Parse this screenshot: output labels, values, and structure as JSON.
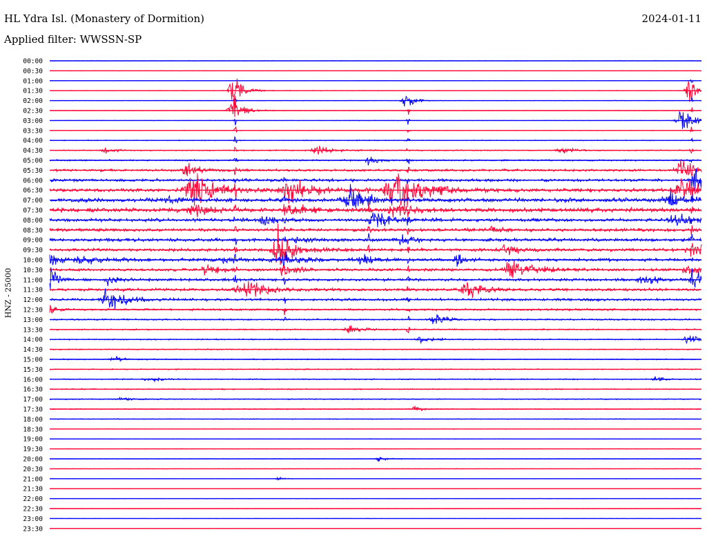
{
  "header": {
    "station": "HL Ydra Isl. (Monastery of Dormition)",
    "date": "2024-01-11",
    "filter": "Applied filter: WWSSN-SP"
  },
  "chart_data": {
    "type": "line",
    "ylabel": "HNZ - 25000",
    "colors": [
      "#0000ff",
      "#ff0033"
    ],
    "rows": [
      "00:00",
      "00:30",
      "01:00",
      "01:30",
      "02:00",
      "02:30",
      "03:00",
      "03:30",
      "04:00",
      "04:30",
      "05:00",
      "05:30",
      "06:00",
      "06:30",
      "07:00",
      "07:30",
      "08:00",
      "08:30",
      "09:00",
      "09:30",
      "10:00",
      "10:30",
      "11:00",
      "11:30",
      "12:00",
      "12:30",
      "13:00",
      "13:30",
      "14:00",
      "14:30",
      "15:00",
      "15:30",
      "16:00",
      "16:30",
      "17:00",
      "17:30",
      "18:00",
      "18:30",
      "19:00",
      "19:30",
      "20:00",
      "20:30",
      "21:00",
      "21:30",
      "22:00",
      "22:30",
      "23:00",
      "23:30"
    ],
    "noise": [
      0.3,
      0.3,
      0.4,
      0.6,
      0.4,
      0.4,
      0.5,
      0.6,
      0.8,
      1.0,
      1.5,
      2.2,
      2.6,
      3.4,
      3.9,
      3.9,
      3.1,
      3.0,
      3.0,
      2.8,
      2.9,
      2.6,
      2.6,
      2.6,
      2.3,
      1.9,
      1.5,
      1.2,
      1.1,
      1.0,
      1.0,
      1.0,
      1.1,
      1.1,
      1.0,
      0.9,
      0.7,
      0.6,
      0.5,
      0.5,
      0.5,
      0.5,
      0.4,
      0.4,
      0.3,
      0.3,
      0.3,
      0.3
    ],
    "events": [
      {
        "row": 3,
        "pos": 0.28,
        "amp": 40,
        "dur": 0.012
      },
      {
        "row": 3,
        "pos": 0.98,
        "amp": 25,
        "dur": 0.01
      },
      {
        "row": 4,
        "pos": 0.545,
        "amp": 20,
        "dur": 0.01
      },
      {
        "row": 5,
        "pos": 0.28,
        "amp": 30,
        "dur": 0.015
      },
      {
        "row": 6,
        "pos": 0.97,
        "amp": 20,
        "dur": 0.02
      },
      {
        "row": 9,
        "pos": 0.085,
        "amp": 8,
        "dur": 0.012
      },
      {
        "row": 9,
        "pos": 0.41,
        "amp": 10,
        "dur": 0.015
      },
      {
        "row": 9,
        "pos": 0.785,
        "amp": 8,
        "dur": 0.015
      },
      {
        "row": 10,
        "pos": 0.49,
        "amp": 12,
        "dur": 0.01
      },
      {
        "row": 11,
        "pos": 0.21,
        "amp": 14,
        "dur": 0.015
      },
      {
        "row": 11,
        "pos": 0.97,
        "amp": 22,
        "dur": 0.02
      },
      {
        "row": 12,
        "pos": 0.99,
        "amp": 20,
        "dur": 0.015
      },
      {
        "row": 13,
        "pos": 0.22,
        "amp": 40,
        "dur": 0.025
      },
      {
        "row": 13,
        "pos": 0.37,
        "amp": 30,
        "dur": 0.025
      },
      {
        "row": 13,
        "pos": 0.53,
        "amp": 50,
        "dur": 0.03
      },
      {
        "row": 13,
        "pos": 0.97,
        "amp": 30,
        "dur": 0.02
      },
      {
        "row": 14,
        "pos": 0.18,
        "amp": 8,
        "dur": 0.015
      },
      {
        "row": 14,
        "pos": 0.46,
        "amp": 30,
        "dur": 0.02
      },
      {
        "row": 14,
        "pos": 0.95,
        "amp": 15,
        "dur": 0.02
      },
      {
        "row": 15,
        "pos": 0.22,
        "amp": 15,
        "dur": 0.02
      },
      {
        "row": 15,
        "pos": 0.37,
        "amp": 12,
        "dur": 0.02
      },
      {
        "row": 15,
        "pos": 0.53,
        "amp": 12,
        "dur": 0.02
      },
      {
        "row": 16,
        "pos": 0.33,
        "amp": 12,
        "dur": 0.015
      },
      {
        "row": 16,
        "pos": 0.5,
        "amp": 15,
        "dur": 0.02
      },
      {
        "row": 16,
        "pos": 0.96,
        "amp": 12,
        "dur": 0.02
      },
      {
        "row": 17,
        "pos": 0.68,
        "amp": 8,
        "dur": 0.015
      },
      {
        "row": 18,
        "pos": 0.38,
        "amp": 8,
        "dur": 0.015
      },
      {
        "row": 18,
        "pos": 0.54,
        "amp": 10,
        "dur": 0.015
      },
      {
        "row": 19,
        "pos": 0.35,
        "amp": 40,
        "dur": 0.02
      },
      {
        "row": 19,
        "pos": 0.7,
        "amp": 12,
        "dur": 0.02
      },
      {
        "row": 19,
        "pos": 0.985,
        "amp": 20,
        "dur": 0.02
      },
      {
        "row": 20,
        "pos": 0.0,
        "amp": 18,
        "dur": 0.01
      },
      {
        "row": 20,
        "pos": 0.05,
        "amp": 10,
        "dur": 0.025
      },
      {
        "row": 20,
        "pos": 0.27,
        "amp": 8,
        "dur": 0.02
      },
      {
        "row": 20,
        "pos": 0.36,
        "amp": 16,
        "dur": 0.02
      },
      {
        "row": 20,
        "pos": 0.48,
        "amp": 10,
        "dur": 0.015
      },
      {
        "row": 20,
        "pos": 0.625,
        "amp": 10,
        "dur": 0.01
      },
      {
        "row": 21,
        "pos": 0.24,
        "amp": 14,
        "dur": 0.015
      },
      {
        "row": 21,
        "pos": 0.36,
        "amp": 14,
        "dur": 0.015
      },
      {
        "row": 21,
        "pos": 0.71,
        "amp": 22,
        "dur": 0.025
      },
      {
        "row": 21,
        "pos": 0.98,
        "amp": 10,
        "dur": 0.02
      },
      {
        "row": 22,
        "pos": 0.0,
        "amp": 30,
        "dur": 0.01
      },
      {
        "row": 22,
        "pos": 0.09,
        "amp": 12,
        "dur": 0.01
      },
      {
        "row": 22,
        "pos": 0.91,
        "amp": 12,
        "dur": 0.02
      },
      {
        "row": 22,
        "pos": 0.99,
        "amp": 14,
        "dur": 0.02
      },
      {
        "row": 23,
        "pos": 0.3,
        "amp": 20,
        "dur": 0.025
      },
      {
        "row": 23,
        "pos": 0.64,
        "amp": 18,
        "dur": 0.02
      },
      {
        "row": 24,
        "pos": 0.09,
        "amp": 22,
        "dur": 0.025
      },
      {
        "row": 25,
        "pos": 0.0,
        "amp": 15,
        "dur": 0.008
      },
      {
        "row": 26,
        "pos": 0.59,
        "amp": 12,
        "dur": 0.015
      },
      {
        "row": 27,
        "pos": 0.46,
        "amp": 9,
        "dur": 0.015
      },
      {
        "row": 28,
        "pos": 0.57,
        "amp": 6,
        "dur": 0.015
      },
      {
        "row": 28,
        "pos": 0.98,
        "amp": 10,
        "dur": 0.015
      },
      {
        "row": 30,
        "pos": 0.1,
        "amp": 5,
        "dur": 0.015
      },
      {
        "row": 32,
        "pos": 0.15,
        "amp": 5,
        "dur": 0.015
      },
      {
        "row": 32,
        "pos": 0.93,
        "amp": 6,
        "dur": 0.01
      },
      {
        "row": 34,
        "pos": 0.11,
        "amp": 4,
        "dur": 0.015
      },
      {
        "row": 35,
        "pos": 0.56,
        "amp": 5,
        "dur": 0.01
      },
      {
        "row": 40,
        "pos": 0.505,
        "amp": 5,
        "dur": 0.01
      },
      {
        "row": 42,
        "pos": 0.35,
        "amp": 3,
        "dur": 0.01
      }
    ],
    "lines": [
      {
        "pos": 0.285,
        "row_start": 3,
        "row_end": 23,
        "amp": 3.5
      },
      {
        "pos": 0.55,
        "row_start": 5,
        "row_end": 27,
        "amp": 3
      },
      {
        "pos": 0.985,
        "row_start": 2,
        "row_end": 22,
        "amp": 2.5
      },
      {
        "pos": 0.36,
        "row_start": 12,
        "row_end": 26,
        "amp": 3
      },
      {
        "pos": 0.49,
        "row_start": 13,
        "row_end": 19,
        "amp": 3
      }
    ]
  }
}
